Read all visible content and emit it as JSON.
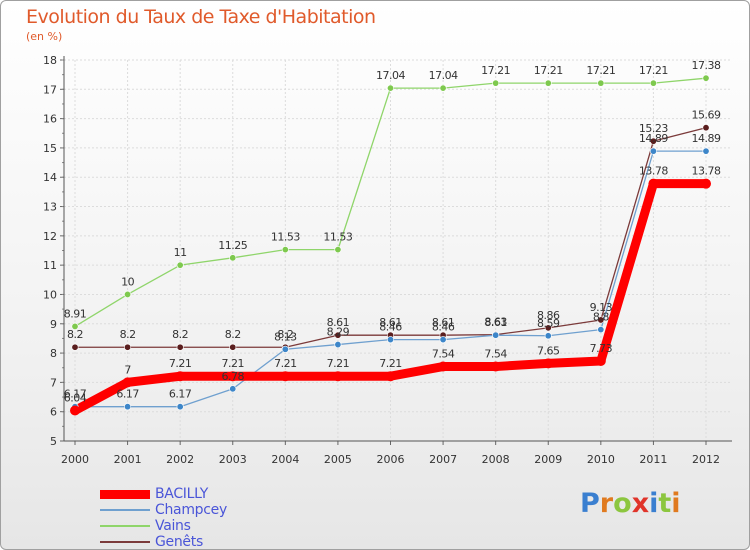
{
  "chart_data": {
    "type": "line",
    "title": "Evolution du Taux de Taxe d'Habitation",
    "unit": "(en %)",
    "xlabel": "",
    "ylabel": "",
    "ylim": [
      5,
      18
    ],
    "yticks": [
      5,
      6,
      7,
      8,
      9,
      10,
      11,
      12,
      13,
      14,
      15,
      16,
      17,
      18
    ],
    "categories": [
      "2000",
      "2001",
      "2002",
      "2003",
      "2004",
      "2005",
      "2006",
      "2007",
      "2008",
      "2009",
      "2010",
      "2011",
      "2012"
    ],
    "series": [
      {
        "name": "Vains",
        "color": "#8fd56a",
        "marker": "#7ec94e",
        "values": [
          8.91,
          10,
          11,
          11.25,
          11.53,
          11.53,
          17.04,
          17.04,
          17.21,
          17.21,
          17.21,
          17.21,
          17.38
        ],
        "labels": [
          "8.91",
          "10",
          "11",
          "11.25",
          "11.53",
          "11.53",
          "17.04",
          "17.04",
          "17.21",
          "17.21",
          "17.21",
          "17.21",
          "17.38"
        ]
      },
      {
        "name": "Genêts",
        "color": "#7b3a3a",
        "marker": "#5a1e1e",
        "values": [
          8.2,
          8.2,
          8.2,
          8.2,
          8.2,
          8.61,
          8.61,
          8.61,
          8.63,
          8.86,
          9.13,
          15.23,
          15.69
        ],
        "labels": [
          "8.2",
          "8.2",
          "8.2",
          "8.2",
          "8.2",
          "8.61",
          "8.61",
          "8.61",
          "8.63",
          "8.86",
          "9.13",
          "15.23",
          "15.69"
        ]
      },
      {
        "name": "Champcey",
        "color": "#6fa0cf",
        "marker": "#3d86c9",
        "values": [
          6.17,
          6.17,
          6.17,
          6.78,
          8.13,
          8.29,
          8.46,
          8.46,
          8.61,
          8.59,
          8.8,
          14.89,
          14.89
        ],
        "labels": [
          "6.17",
          "6.17",
          "6.17",
          "6.78",
          "8.13",
          "8.29",
          "8.46",
          "8.46",
          "8.61",
          "8.59",
          "8.8",
          "14.89",
          "14.89"
        ]
      },
      {
        "name": "BACILLY",
        "color": "#ff0000",
        "marker": "#ff0000",
        "thick": true,
        "values": [
          6.04,
          7,
          7.21,
          7.21,
          7.21,
          7.21,
          7.21,
          7.54,
          7.54,
          7.65,
          7.73,
          13.78,
          13.78
        ],
        "labels": [
          "6.04",
          "7",
          "7.21",
          "7.21",
          "7.21",
          "7.21",
          "7.21",
          "7.54",
          "7.54",
          "7.65",
          "7.73",
          "13.78",
          "13.78"
        ]
      }
    ]
  },
  "legend": [
    {
      "name": "BACILLY",
      "color": "#ff0000",
      "thick": true
    },
    {
      "name": "Champcey",
      "color": "#6fa0cf",
      "thick": false
    },
    {
      "name": "Vains",
      "color": "#8fd56a",
      "thick": false
    },
    {
      "name": "Genêts",
      "color": "#7b3a3a",
      "thick": false
    }
  ],
  "logo": {
    "letters": [
      "P",
      "r",
      "o",
      "x",
      "i",
      "t",
      "i"
    ],
    "colors": [
      "#3a7fd0",
      "#e07a1f",
      "#8cc63f",
      "#e0342a",
      "#3a7fd0",
      "#8cc63f",
      "#e07a1f"
    ]
  }
}
